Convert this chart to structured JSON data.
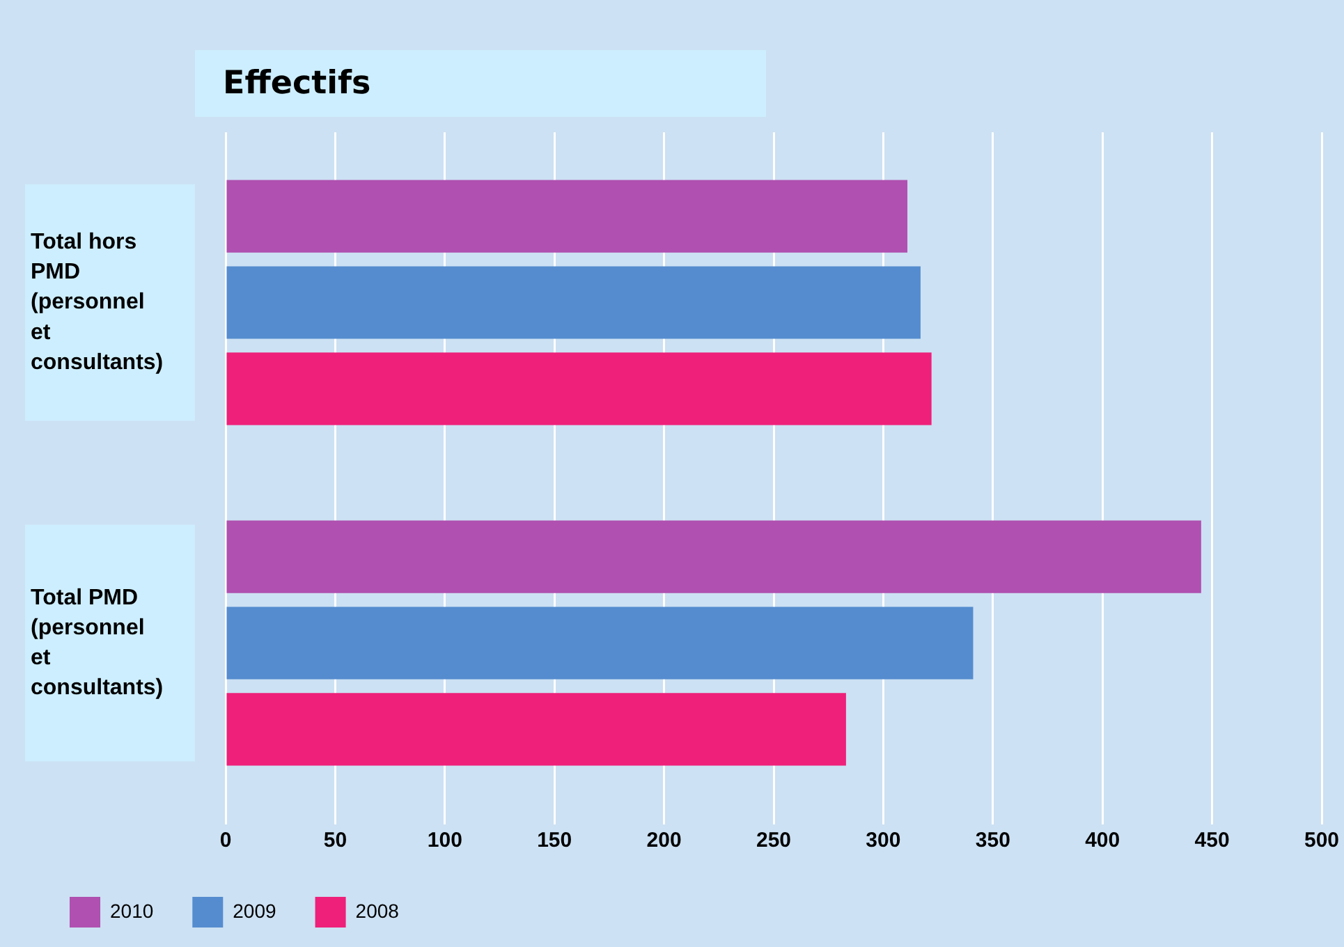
{
  "chart_data": {
    "type": "bar",
    "title": "Effectifs",
    "orientation": "horizontal",
    "categories": [
      "Total hors PMD (personnel et consultants)",
      "Total PMD (personnel et consultants)"
    ],
    "series": [
      {
        "name": "2010",
        "color": "#b050b0",
        "values": [
          311,
          445
        ]
      },
      {
        "name": "2009",
        "color": "#558ccf",
        "values": [
          317,
          341
        ]
      },
      {
        "name": "2008",
        "color": "#ee207a",
        "values": [
          322,
          283
        ]
      }
    ],
    "xlim": [
      0,
      500
    ],
    "xticks": [
      0,
      50,
      100,
      150,
      200,
      250,
      300,
      350,
      400,
      450,
      500
    ],
    "grid": "x",
    "legend": "bottom left"
  }
}
